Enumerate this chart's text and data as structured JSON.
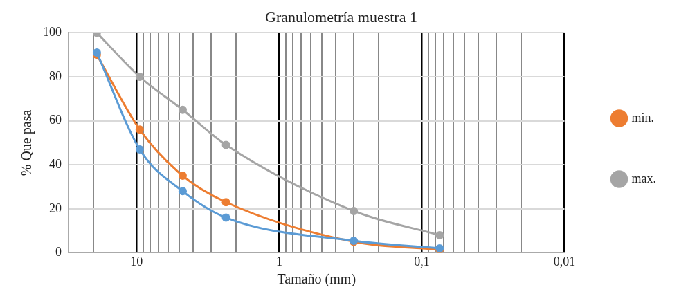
{
  "chart_data": {
    "type": "line",
    "title": "Granulometría muestra 1",
    "xlabel": "Tamaño (mm)",
    "ylabel": "% Que pasa",
    "x": [
      19,
      9.5,
      4.75,
      2.36,
      0.3,
      0.075
    ],
    "series": [
      {
        "color": "#5b9bd5",
        "values": [
          91,
          47,
          28,
          16,
          5.5,
          2
        ]
      },
      {
        "name": "min.",
        "color": "#ed7d31",
        "values": [
          90,
          56,
          35,
          23,
          5,
          1.5
        ]
      },
      {
        "name": "max.",
        "color": "#a5a5a5",
        "values": [
          100,
          80,
          65,
          49,
          19,
          8
        ]
      }
    ],
    "log": "x",
    "xlim": [
      30,
      0.01
    ],
    "xticks": [
      {
        "value": 20,
        "label": null
      },
      {
        "value": 10,
        "label": "10"
      },
      {
        "value": 9,
        "label": null
      },
      {
        "value": 8,
        "label": null
      },
      {
        "value": 7,
        "label": null
      },
      {
        "value": 6,
        "label": null
      },
      {
        "value": 5,
        "label": null
      },
      {
        "value": 4,
        "label": null
      },
      {
        "value": 3,
        "label": null
      },
      {
        "value": 2,
        "label": null
      },
      {
        "value": 1,
        "label": "1"
      },
      {
        "value": 0.9,
        "label": null
      },
      {
        "value": 0.8,
        "label": null
      },
      {
        "value": 0.7,
        "label": null
      },
      {
        "value": 0.6,
        "label": null
      },
      {
        "value": 0.5,
        "label": null
      },
      {
        "value": 0.4,
        "label": null
      },
      {
        "value": 0.3,
        "label": null
      },
      {
        "value": 0.2,
        "label": null
      },
      {
        "value": 0.1,
        "label": "0,1"
      },
      {
        "value": 0.09,
        "label": null
      },
      {
        "value": 0.08,
        "label": null
      },
      {
        "value": 0.07,
        "label": null
      },
      {
        "value": 0.06,
        "label": null
      },
      {
        "value": 0.05,
        "label": null
      },
      {
        "value": 0.04,
        "label": null
      },
      {
        "value": 0.03,
        "label": null
      },
      {
        "value": 0.02,
        "label": null
      },
      {
        "value": 0.01,
        "label": "0,01"
      }
    ],
    "ylim": [
      0,
      100
    ],
    "yticks": [
      0,
      20,
      40,
      60,
      80,
      100
    ],
    "grid": true,
    "legend": "right",
    "marker": "circle",
    "line_style": "solid"
  }
}
